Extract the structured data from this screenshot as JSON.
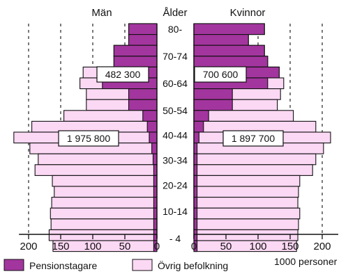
{
  "chart_data": {
    "type": "bar",
    "subtype": "population-pyramid",
    "title": "",
    "groups": {
      "left": "Män",
      "right": "Kvinnor"
    },
    "age_header": "Ålder",
    "age_labels": [
      "80-",
      "70-74",
      "60-64",
      "50-54",
      "40-44",
      "30-34",
      "20-24",
      "10-14",
      "- 4"
    ],
    "unit_label": "1000 personer",
    "xlim": [
      0,
      210
    ],
    "x_ticks": [
      0,
      50,
      100,
      150,
      200
    ],
    "x_tick_labels": [
      "0",
      "50",
      "100",
      "150",
      "200"
    ],
    "bar_order": "oldest-to-youngest",
    "series": [
      {
        "name": "Pensionstagare",
        "color": "#a3359e"
      },
      {
        "name": "Övrig befolkning",
        "color": "#fbd8f4"
      }
    ],
    "men": {
      "totals": [
        44,
        44,
        67,
        67,
        115,
        120,
        110,
        110,
        145,
        195,
        223,
        198,
        185,
        190,
        163,
        160,
        164,
        166,
        165,
        168,
        162
      ],
      "pensioners": [
        44,
        44,
        67,
        67,
        93,
        85,
        44,
        44,
        22,
        15,
        12,
        8,
        6,
        5,
        5,
        5,
        5,
        5,
        5,
        5,
        5
      ]
    },
    "women": {
      "totals": [
        110,
        85,
        110,
        115,
        133,
        140,
        135,
        130,
        155,
        190,
        213,
        202,
        190,
        185,
        165,
        163,
        162,
        165,
        163,
        162,
        160
      ],
      "pensioners": [
        110,
        85,
        110,
        115,
        133,
        115,
        60,
        60,
        23,
        15,
        8,
        5,
        5,
        5,
        5,
        5,
        5,
        5,
        5,
        5,
        5
      ]
    },
    "annotations": [
      {
        "text": "482 300",
        "group": "men",
        "band": "pensioners"
      },
      {
        "text": "700 600",
        "group": "women",
        "band": "pensioners"
      },
      {
        "text": "1 975 800",
        "group": "men",
        "band": "others"
      },
      {
        "text": "1 897 700",
        "group": "women",
        "band": "others"
      }
    ],
    "grid": "vertical-dashed"
  }
}
